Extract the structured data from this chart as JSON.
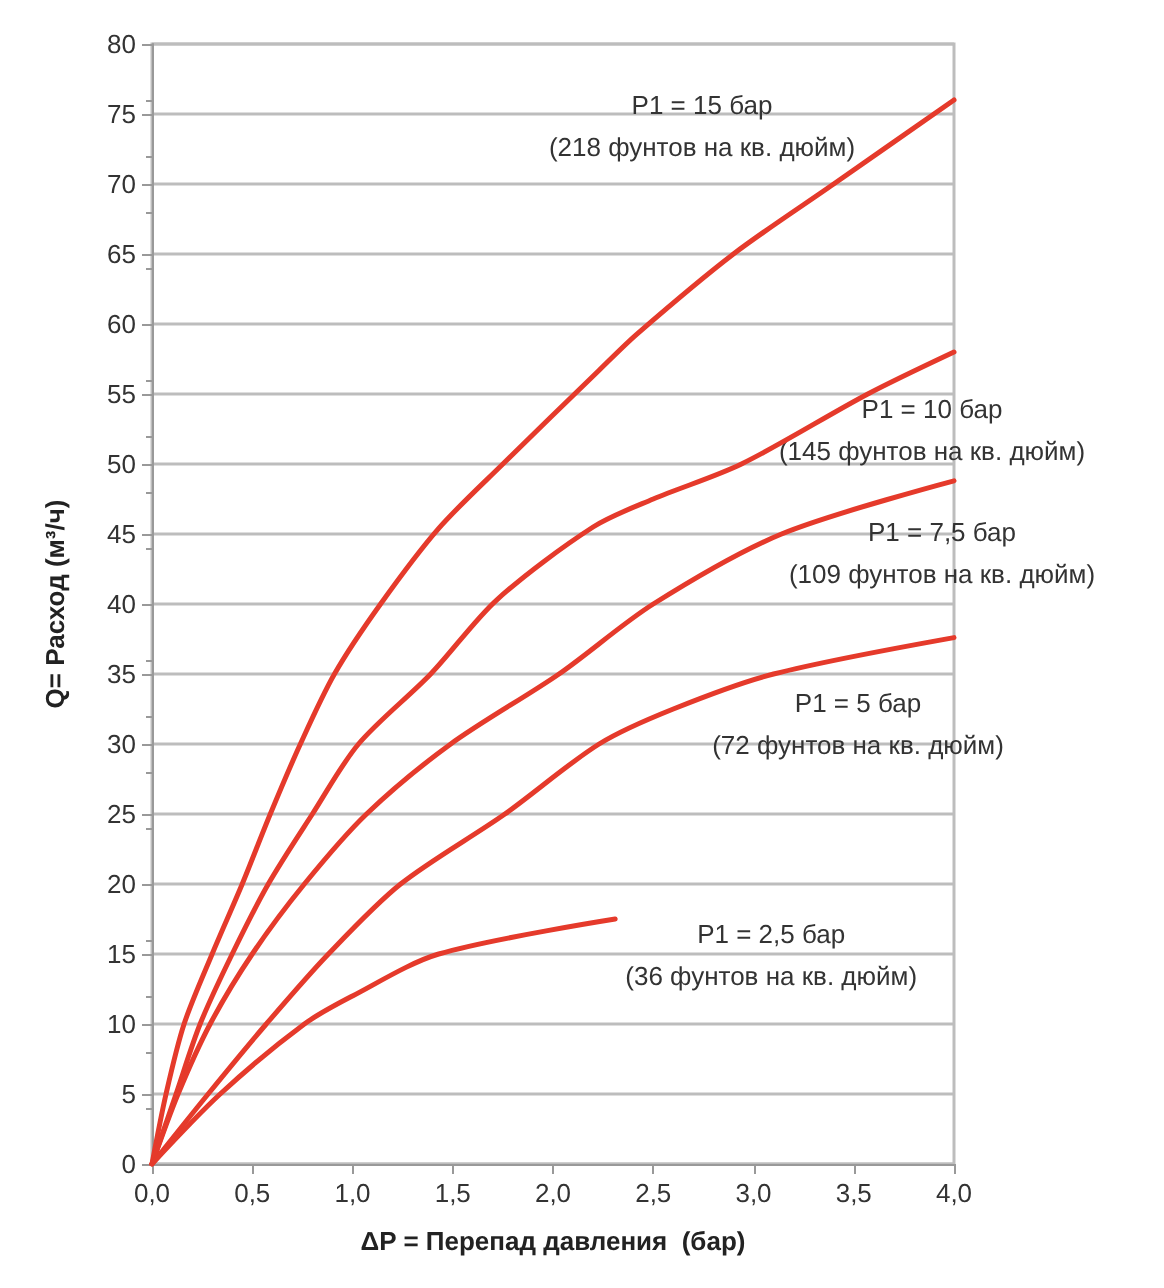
{
  "chart_data": {
    "type": "line",
    "xlabel": "ΔP = Перепад давления  (бар)",
    "ylabel": "Q= Расход (м³/ч)",
    "xlim": [
      0,
      4
    ],
    "xticks": [
      {
        "value": 0,
        "label": "0,0"
      },
      {
        "value": 0.5,
        "label": "0,5"
      },
      {
        "value": 1,
        "label": "1,0"
      },
      {
        "value": 1.5,
        "label": "1,5"
      },
      {
        "value": 2,
        "label": "2,0"
      },
      {
        "value": 2.5,
        "label": "2,5"
      },
      {
        "value": 3,
        "label": "3,0"
      },
      {
        "value": 3.5,
        "label": "3,5"
      },
      {
        "value": 4,
        "label": "4,0"
      }
    ],
    "ylim": [
      0,
      80
    ],
    "yticks": [
      0,
      5,
      10,
      15,
      20,
      25,
      30,
      35,
      40,
      45,
      50,
      55,
      60,
      65,
      70,
      75,
      80
    ],
    "grid": "y",
    "marker": "none",
    "line_style": "solid",
    "series": [
      {
        "color": "#e53a2b",
        "x": [
          0,
          0.07,
          0.16,
          0.3,
          0.45,
          0.59,
          0.74,
          0.91,
          1.14,
          1.43,
          1.75,
          2.23,
          2.42,
          2.9,
          3.4,
          4.0
        ],
        "values": [
          0,
          5,
          10,
          15,
          20,
          25,
          30,
          35,
          40,
          45.4,
          50,
          56.7,
          59.3,
          65,
          70,
          76
        ]
      },
      {
        "color": "#e53a2b",
        "x": [
          0,
          0.12,
          0.24,
          0.4,
          0.58,
          0.8,
          1.03,
          1.39,
          1.72,
          2.2,
          2.5,
          2.94,
          3.57,
          4.0
        ],
        "values": [
          0,
          5,
          10,
          15,
          20,
          25,
          30,
          35,
          40.3,
          45.5,
          47.5,
          50,
          55,
          58
        ]
      },
      {
        "color": "#e53a2b",
        "x": [
          0,
          0.13,
          0.29,
          0.5,
          0.76,
          1.07,
          1.49,
          2.03,
          2.5,
          3.14,
          4.0
        ],
        "values": [
          0,
          5,
          10,
          15,
          20,
          25,
          30,
          35,
          40,
          45,
          48.8
        ]
      },
      {
        "color": "#e53a2b",
        "x": [
          0,
          0.28,
          0.57,
          0.88,
          1.24,
          1.76,
          2.23,
          2.6,
          3.1,
          4.0
        ],
        "values": [
          0,
          5,
          10,
          15,
          20,
          25,
          30,
          32.5,
          35,
          37.6
        ]
      },
      {
        "color": "#e53a2b",
        "x": [
          0,
          0.34,
          0.76,
          1.0,
          1.43,
          2.31
        ],
        "values": [
          0,
          5,
          10,
          12,
          15,
          17.5
        ]
      }
    ],
    "annotations": [
      "P1 = 15 бар\n(218 фунтов на кв. дюйм)",
      "P1 = 10 бар\n(145 фунтов на кв. дюйм)",
      "P1 = 7,5 бар\n(109 фунтов на кв. дюйм)",
      "P1 = 5 бар\n(72 фунтов на кв. дюйм)",
      "P1 = 2,5 бар\n(36 фунтов на кв. дюйм)"
    ]
  }
}
